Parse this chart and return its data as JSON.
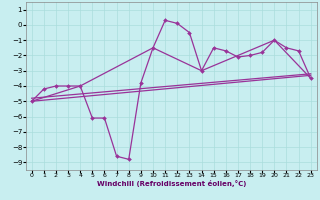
{
  "xlabel": "Windchill (Refroidissement éolien,°C)",
  "background_color": "#c8eef0",
  "line_color": "#993399",
  "grid_color": "#aadddd",
  "xlim": [
    -0.5,
    23.5
  ],
  "ylim": [
    -9.5,
    1.5
  ],
  "xticks": [
    0,
    1,
    2,
    3,
    4,
    5,
    6,
    7,
    8,
    9,
    10,
    11,
    12,
    13,
    14,
    15,
    16,
    17,
    18,
    19,
    20,
    21,
    22,
    23
  ],
  "yticks": [
    1,
    0,
    -1,
    -2,
    -3,
    -4,
    -5,
    -6,
    -7,
    -8,
    -9
  ],
  "curve1_x": [
    0,
    1,
    2,
    3,
    4,
    5,
    6,
    7,
    8,
    9,
    10,
    11,
    12,
    13,
    14,
    15,
    16,
    17,
    18,
    19,
    20,
    21,
    22,
    23
  ],
  "curve1_y": [
    -5.0,
    -4.2,
    -4.0,
    -4.0,
    -4.0,
    -6.1,
    -6.1,
    -8.6,
    -8.8,
    -3.8,
    -1.5,
    0.3,
    0.1,
    -0.5,
    -3.0,
    -1.5,
    -1.7,
    -2.1,
    -2.0,
    -1.8,
    -1.0,
    -1.5,
    -1.7,
    -3.5
  ],
  "curve2_x": [
    0,
    23
  ],
  "curve2_y": [
    -5.0,
    -3.3
  ],
  "curve3_x": [
    0,
    4,
    10,
    14,
    20,
    23
  ],
  "curve3_y": [
    -5.0,
    -4.0,
    -1.5,
    -3.0,
    -1.0,
    -3.5
  ],
  "curve4_x": [
    0,
    23
  ],
  "curve4_y": [
    -4.8,
    -3.2
  ]
}
